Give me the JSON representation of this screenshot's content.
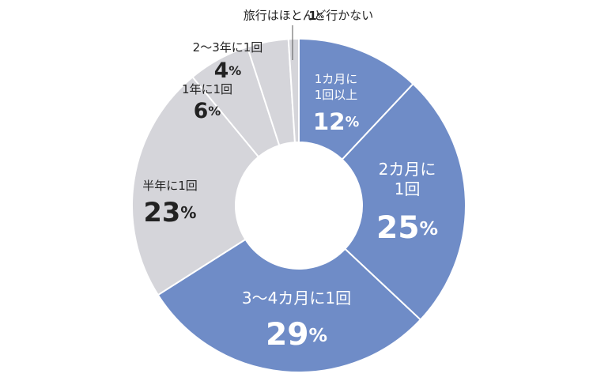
{
  "chart_data": {
    "type": "donut",
    "categories": [
      "1カ月に\n1回以上",
      "2カ月に\n1回",
      "3～4カ月に1回",
      "半年に1回",
      "1年に1回",
      "2～3年に1回",
      "旅行はほとんど行かない"
    ],
    "values": [
      12,
      25,
      29,
      23,
      6,
      4,
      1
    ],
    "value_labels": [
      "12%",
      "25%",
      "29%",
      "23%",
      "6%",
      "4%",
      "1%"
    ],
    "colors": [
      "#6f8cc7",
      "#6f8cc7",
      "#6f8cc7",
      "#d5d5da",
      "#d5d5da",
      "#d5d5da",
      "#d5d5da"
    ]
  }
}
